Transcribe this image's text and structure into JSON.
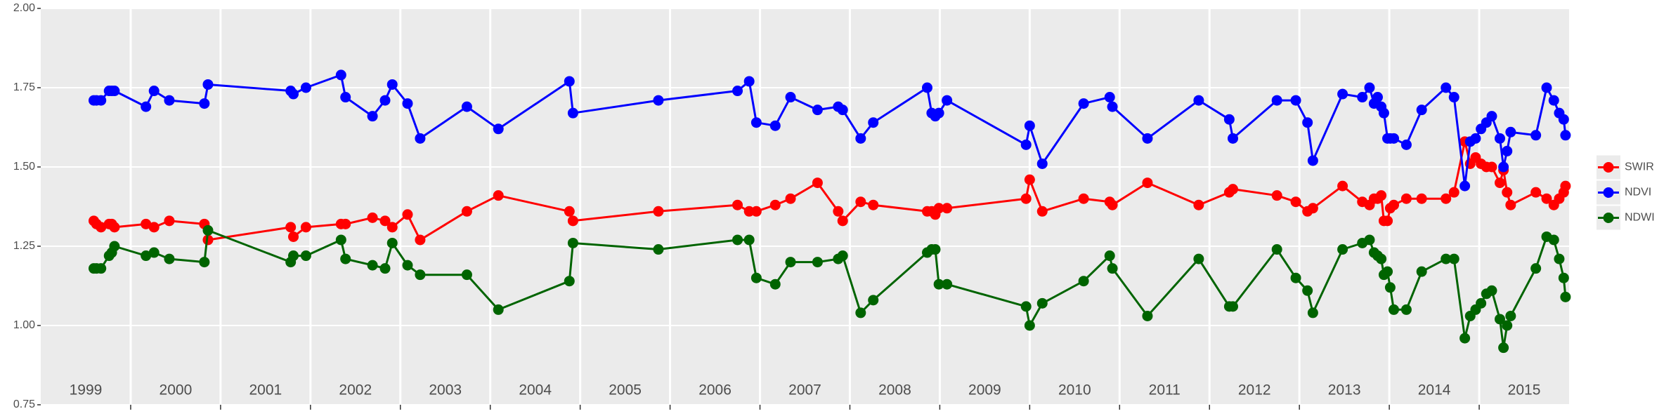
{
  "chart_data": {
    "type": "line",
    "x": [
      1999.59,
      1999.62,
      1999.67,
      1999.76,
      1999.79,
      1999.82,
      2000.17,
      2000.26,
      2000.43,
      2000.82,
      2000.86,
      2001.78,
      2001.81,
      2001.95,
      2002.34,
      2002.39,
      2002.69,
      2002.83,
      2002.91,
      2003.08,
      2003.22,
      2003.74,
      2004.09,
      2004.88,
      2004.92,
      2005.87,
      2006.75,
      2006.88,
      2006.96,
      2007.17,
      2007.34,
      2007.64,
      2007.87,
      2007.92,
      2008.12,
      2008.26,
      2008.86,
      2008.91,
      2008.95,
      2008.99,
      2009.08,
      2009.96,
      2010.0,
      2010.14,
      2010.6,
      2010.89,
      2010.92,
      2011.31,
      2011.88,
      2012.22,
      2012.26,
      2012.75,
      2012.96,
      2013.09,
      2013.15,
      2013.48,
      2013.7,
      2013.78,
      2013.83,
      2013.87,
      2013.91,
      2013.94,
      2013.98,
      2014.01,
      2014.05,
      2014.19,
      2014.36,
      2014.63,
      2014.72,
      2014.84,
      2014.9,
      2014.96,
      2015.02,
      2015.08,
      2015.14,
      2015.23,
      2015.27,
      2015.31,
      2015.35,
      2015.63,
      2015.75,
      2015.83,
      2015.89,
      2015.94,
      2015.96
    ],
    "series": [
      {
        "name": "SWIR",
        "color": "#ff0000",
        "values": [
          1.33,
          1.32,
          1.31,
          1.32,
          1.32,
          1.31,
          1.32,
          1.31,
          1.33,
          1.32,
          1.27,
          1.31,
          1.28,
          1.31,
          1.32,
          1.32,
          1.34,
          1.33,
          1.31,
          1.35,
          1.27,
          1.36,
          1.41,
          1.36,
          1.33,
          1.36,
          1.38,
          1.36,
          1.36,
          1.38,
          1.4,
          1.45,
          1.36,
          1.33,
          1.39,
          1.38,
          1.36,
          1.36,
          1.35,
          1.37,
          1.37,
          1.4,
          1.46,
          1.36,
          1.4,
          1.39,
          1.38,
          1.45,
          1.38,
          1.42,
          1.43,
          1.41,
          1.39,
          1.36,
          1.37,
          1.44,
          1.39,
          1.38,
          1.4,
          1.4,
          1.41,
          1.33,
          1.33,
          1.37,
          1.38,
          1.4,
          1.4,
          1.4,
          1.42,
          1.58,
          1.51,
          1.53,
          1.51,
          1.5,
          1.5,
          1.45,
          1.49,
          1.42,
          1.38,
          1.42,
          1.4,
          1.38,
          1.4,
          1.42,
          1.44
        ]
      },
      {
        "name": "NDVI",
        "color": "#0000ff",
        "values": [
          1.71,
          1.71,
          1.71,
          1.74,
          1.74,
          1.74,
          1.69,
          1.74,
          1.71,
          1.7,
          1.76,
          1.74,
          1.73,
          1.75,
          1.79,
          1.72,
          1.66,
          1.71,
          1.76,
          1.7,
          1.59,
          1.69,
          1.62,
          1.77,
          1.67,
          1.71,
          1.74,
          1.77,
          1.64,
          1.63,
          1.72,
          1.68,
          1.69,
          1.68,
          1.59,
          1.64,
          1.75,
          1.67,
          1.66,
          1.67,
          1.71,
          1.57,
          1.63,
          1.51,
          1.7,
          1.72,
          1.69,
          1.59,
          1.71,
          1.65,
          1.59,
          1.71,
          1.71,
          1.64,
          1.52,
          1.73,
          1.72,
          1.75,
          1.7,
          1.72,
          1.69,
          1.67,
          1.59,
          1.59,
          1.59,
          1.57,
          1.68,
          1.75,
          1.72,
          1.44,
          1.58,
          1.59,
          1.62,
          1.64,
          1.66,
          1.59,
          1.5,
          1.55,
          1.61,
          1.6,
          1.75,
          1.71,
          1.67,
          1.65,
          1.6
        ]
      },
      {
        "name": "NDWI",
        "color": "#006400",
        "values": [
          1.18,
          1.18,
          1.18,
          1.22,
          1.23,
          1.25,
          1.22,
          1.23,
          1.21,
          1.2,
          1.3,
          1.2,
          1.22,
          1.22,
          1.27,
          1.21,
          1.19,
          1.18,
          1.26,
          1.19,
          1.16,
          1.16,
          1.05,
          1.14,
          1.26,
          1.24,
          1.27,
          1.27,
          1.15,
          1.13,
          1.2,
          1.2,
          1.21,
          1.22,
          1.04,
          1.08,
          1.23,
          1.24,
          1.24,
          1.13,
          1.13,
          1.06,
          1.0,
          1.07,
          1.14,
          1.22,
          1.18,
          1.03,
          1.21,
          1.06,
          1.06,
          1.24,
          1.15,
          1.11,
          1.04,
          1.24,
          1.26,
          1.27,
          1.23,
          1.22,
          1.21,
          1.16,
          1.17,
          1.12,
          1.05,
          1.05,
          1.17,
          1.21,
          1.21,
          0.96,
          1.03,
          1.05,
          1.07,
          1.1,
          1.11,
          1.02,
          0.93,
          1.0,
          1.03,
          1.18,
          1.28,
          1.27,
          1.21,
          1.15,
          1.09
        ]
      }
    ],
    "annotations": [
      "1999",
      "2000",
      "2001",
      "2002",
      "2003",
      "2004",
      "2005",
      "2006",
      "2007",
      "2008",
      "2009",
      "2010",
      "2011",
      "2012",
      "2013",
      "2014",
      "2015"
    ],
    "xlim": [
      1999,
      2016
    ],
    "xticks": [
      2000,
      2001,
      2002,
      2003,
      2004,
      2005,
      2006,
      2007,
      2008,
      2009,
      2010,
      2011,
      2012,
      2013,
      2014,
      2015
    ],
    "ylim": [
      0.75,
      2.0
    ],
    "yticks": [
      0.75,
      {
        "value": 1,
        "label": "1.00"
      },
      1.25,
      {
        "value": 1.5,
        "label": "1.50"
      },
      1.75,
      {
        "value": 2,
        "label": "2.00"
      }
    ],
    "grid": true,
    "legend": "right"
  }
}
